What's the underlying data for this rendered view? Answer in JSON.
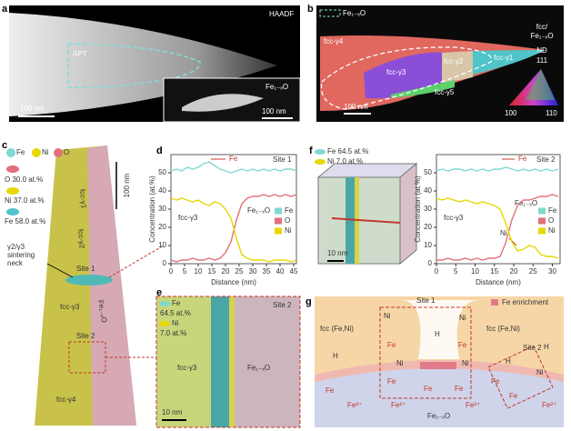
{
  "chart_data": [
    {
      "type": "line",
      "x_label": "Distance (nm)",
      "y_label": "Concentration (at.%)",
      "legend": "right",
      "annotations": [
        "Site 1",
        "Fe",
        "fcc-γ3",
        "Fe₁₋ₓO"
      ],
      "x": [
        0,
        2,
        4,
        6,
        8,
        10,
        12,
        14,
        16,
        18,
        20,
        22,
        24,
        26,
        28,
        30,
        32,
        34,
        36,
        38,
        40,
        42,
        44,
        46
      ],
      "series": [
        {
          "name": "Fe",
          "color": "#7fd9d0",
          "values": [
            51,
            52,
            51,
            53,
            52,
            53,
            55,
            56,
            54,
            52,
            51,
            50,
            51,
            52,
            51,
            52,
            51,
            52,
            51,
            52,
            51,
            52,
            52,
            51
          ]
        },
        {
          "name": "O",
          "color": "#e2707c",
          "values": [
            2,
            1,
            2,
            2,
            3,
            2,
            2,
            3,
            2,
            3,
            6,
            12,
            24,
            33,
            36,
            37,
            37,
            38,
            37,
            38,
            37,
            38,
            37,
            38
          ]
        },
        {
          "name": "Ni",
          "color": "#e6d800",
          "values": [
            36,
            35,
            36,
            35,
            34,
            35,
            33,
            32,
            34,
            33,
            30,
            25,
            14,
            5,
            3,
            2,
            2,
            2,
            1,
            2,
            2,
            2,
            1,
            2
          ]
        }
      ],
      "xlim": [
        0,
        46
      ],
      "xticks": [
        0,
        5,
        10,
        15,
        20,
        25,
        30,
        35,
        40,
        45
      ],
      "ylim": [
        0,
        60
      ],
      "yticks": [
        0,
        10,
        20,
        30,
        40,
        50
      ]
    },
    {
      "type": "line",
      "x_label": "Distance (nm)",
      "y_label": "Concentration (at.%)",
      "legend": "right",
      "annotations": [
        "Site 2",
        "Fe",
        "fcc-γ3",
        "Fe₁₋ₓO",
        "Ni"
      ],
      "x": [
        0,
        1.5,
        3,
        4.5,
        6,
        7.5,
        9,
        10.5,
        12,
        13.5,
        15,
        16.5,
        18,
        19.5,
        21,
        22.5,
        24,
        25.5,
        27,
        28.5,
        30,
        31.5
      ],
      "series": [
        {
          "name": "Fe",
          "color": "#7fd9d0",
          "values": [
            51,
            52,
            51,
            52,
            52,
            51,
            52,
            51,
            52,
            51,
            52,
            52,
            53,
            52,
            51,
            52,
            51,
            52,
            51,
            52,
            51,
            52
          ]
        },
        {
          "name": "O",
          "color": "#e2707c",
          "values": [
            2,
            2,
            3,
            2,
            2,
            3,
            2,
            3,
            2,
            3,
            3,
            4,
            12,
            24,
            32,
            35,
            35,
            36,
            37,
            37,
            38,
            37
          ]
        },
        {
          "name": "Ni",
          "color": "#e6d800",
          "values": [
            36,
            35,
            36,
            35,
            34,
            35,
            34,
            33,
            34,
            33,
            32,
            30,
            22,
            12,
            7,
            8,
            10,
            9,
            5,
            4,
            4,
            3
          ]
        }
      ],
      "xlim": [
        0,
        32
      ],
      "xticks": [
        0,
        5,
        10,
        15,
        20,
        25,
        30
      ],
      "ylim": [
        0,
        60
      ],
      "yticks": [
        0,
        10,
        20,
        30,
        40,
        50
      ]
    }
  ],
  "panel_labels": [
    "a",
    "b",
    "c",
    "d",
    "e",
    "f",
    "g"
  ],
  "a": {
    "mode": "HAADF",
    "region": "APT",
    "scale_bar": "100 nm",
    "inset_phase": "Fe₁₋ₓO",
    "inset_scale_bar": "100 nm"
  },
  "b": {
    "legend_phase": "Fe₁₋ₓO",
    "grains": [
      "fcc-γ4",
      "fcc-γ3",
      "fcc-γ2",
      "fcc-γ1",
      "fcc-γ5"
    ],
    "scale_bar": "100 nm",
    "key_title": [
      "fcc/",
      "Fe₁₋ₓO"
    ],
    "direction": "ND",
    "corners": [
      "111",
      "100",
      "110"
    ]
  },
  "c": {
    "ions": [
      "Fe",
      "Ni",
      "O"
    ],
    "isosurfaces": [
      "O 30.0 at.%",
      "Ni 37.0 at.%",
      "Fe 58.0 at.%"
    ],
    "scale_bar": "100 nm",
    "grains": [
      "fcc-γ1",
      "fcc-γ2",
      "fcc-γ3",
      "fcc-γ4"
    ],
    "neck": [
      "γ2/γ3",
      "sintering",
      "neck"
    ],
    "sites": [
      "Site 1",
      "Site 2"
    ],
    "phase": "Fe₁₋ₓO"
  },
  "e": {
    "isosurfaces": [
      "Fe",
      "64.5 at.%",
      "Ni",
      "7.0 at.%"
    ],
    "site": "Site 2",
    "grain": "fcc-γ3",
    "phase": "Fe₁₋ₓO",
    "scale_bar": "10 nm"
  },
  "f": {
    "isosurfaces": [
      "Fe 64.5 at.%",
      "Ni 7.0 at.%"
    ],
    "scale_bar": "10 nm"
  },
  "g": {
    "sites": [
      "Site 1",
      "Site 2"
    ],
    "legend": "Fe enrichment",
    "matrix": [
      "fcc (Fe,Ni)",
      "fcc (Fe,Ni)"
    ],
    "oxide": "Fe₁₋ₓO",
    "labels": [
      "Ni",
      "Ni",
      "H",
      "Fe",
      "Fe",
      "Ni",
      "Ni",
      "Fe",
      "Fe",
      "Fe",
      "H",
      "Fe",
      "Fe²⁺",
      "H",
      "Fe",
      "Fe²⁺",
      "Fe²⁺",
      "H",
      "Ni",
      "Fe",
      "Fe²⁺"
    ]
  }
}
